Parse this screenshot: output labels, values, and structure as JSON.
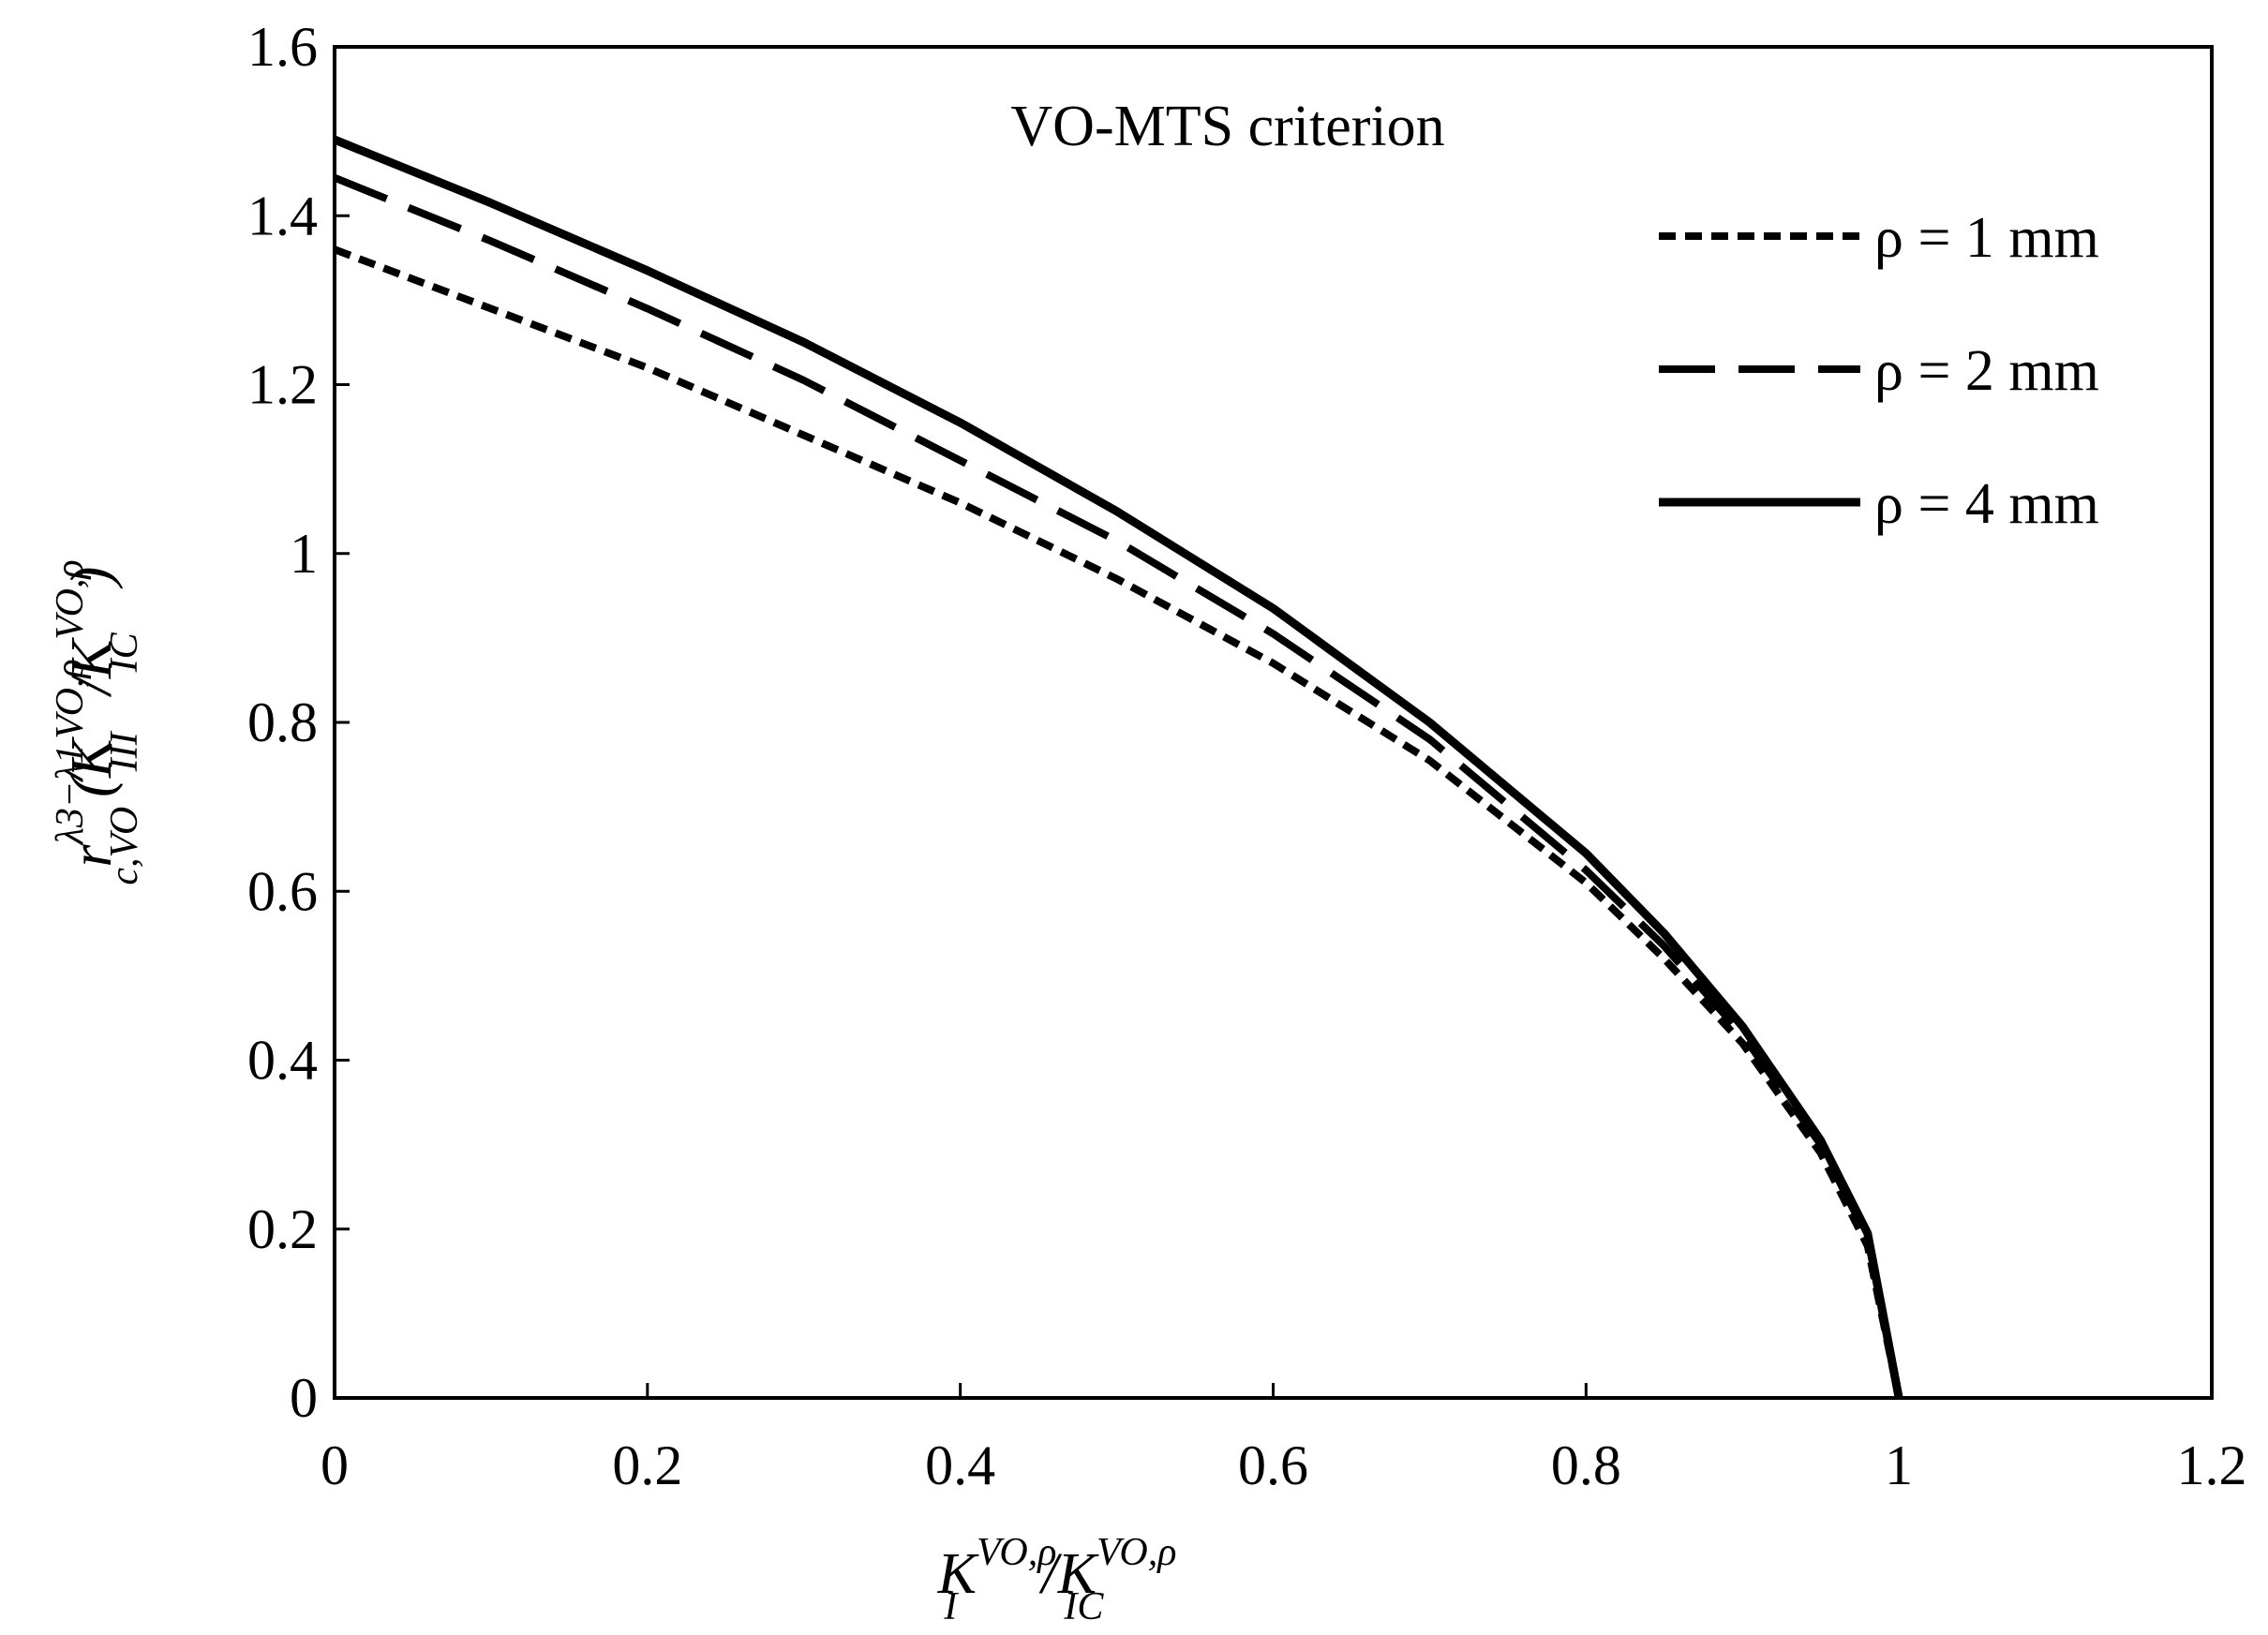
{
  "chart_data": {
    "type": "line",
    "title": "",
    "annotation": "VO-MTS criterion",
    "xlabel": {
      "base1": "K",
      "sup1": "VO,ρ",
      "sub1": "I",
      "slash": "/",
      "base2": "K",
      "sup2": "VO,ρ",
      "sub2": "IC"
    },
    "ylabel": {
      "r": "r",
      "r_sup": "λ3−λ1",
      "r_sub": "c,VO",
      "open": "(",
      "base1": "K",
      "sup1": "VO,ρ",
      "sub1": "III",
      "slash": "/",
      "base2": "K",
      "sup2": "VO,ρ",
      "sub2": "IC",
      "close": ")"
    },
    "xlim": [
      0,
      1.2
    ],
    "ylim": [
      0,
      1.6
    ],
    "xticks": [
      "0",
      "0.2",
      "0.4",
      "0.6",
      "0.8",
      "1",
      "1.2"
    ],
    "yticks": [
      "0",
      "0.2",
      "0.4",
      "0.6",
      "0.8",
      "1",
      "1.2",
      "1.4",
      "1.6"
    ],
    "grid": false,
    "legend_position": "top-right",
    "series": [
      {
        "name": "ρ = 1 mm",
        "style": "dotted",
        "x": [
          0,
          0.1,
          0.2,
          0.3,
          0.4,
          0.5,
          0.6,
          0.7,
          0.8,
          0.85,
          0.9,
          0.95,
          0.98,
          1.0
        ],
        "y": [
          1.36,
          1.29,
          1.22,
          1.14,
          1.06,
          0.97,
          0.87,
          0.755,
          0.61,
          0.52,
          0.42,
          0.29,
          0.18,
          0
        ]
      },
      {
        "name": "ρ = 2 mm",
        "style": "dashed",
        "x": [
          0,
          0.1,
          0.2,
          0.3,
          0.4,
          0.5,
          0.6,
          0.7,
          0.8,
          0.85,
          0.9,
          0.95,
          0.98,
          1.0
        ],
        "y": [
          1.445,
          1.37,
          1.29,
          1.205,
          1.11,
          1.015,
          0.905,
          0.78,
          0.625,
          0.535,
          0.43,
          0.3,
          0.19,
          0
        ]
      },
      {
        "name": "ρ = 4 mm",
        "style": "solid",
        "x": [
          0,
          0.1,
          0.2,
          0.3,
          0.4,
          0.5,
          0.6,
          0.7,
          0.8,
          0.85,
          0.9,
          0.95,
          0.98,
          1.0
        ],
        "y": [
          1.49,
          1.415,
          1.335,
          1.25,
          1.155,
          1.05,
          0.935,
          0.8,
          0.645,
          0.55,
          0.44,
          0.305,
          0.195,
          0
        ]
      }
    ]
  }
}
